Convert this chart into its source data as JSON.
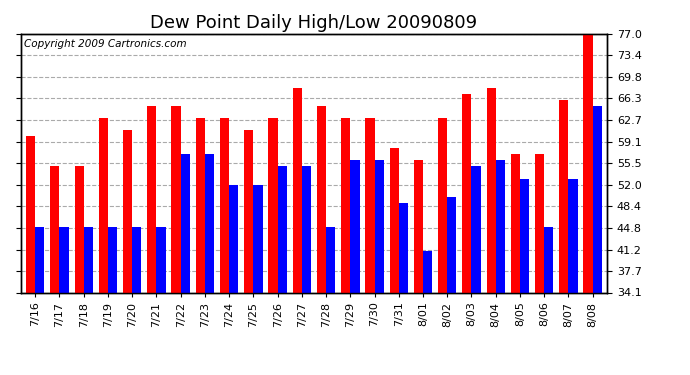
{
  "title": "Dew Point Daily High/Low 20090809",
  "copyright_text": "Copyright 2009 Cartronics.com",
  "dates": [
    "7/16",
    "7/17",
    "7/18",
    "7/19",
    "7/20",
    "7/21",
    "7/22",
    "7/23",
    "7/24",
    "7/25",
    "7/26",
    "7/27",
    "7/28",
    "7/29",
    "7/30",
    "7/31",
    "8/01",
    "8/02",
    "8/03",
    "8/04",
    "8/05",
    "8/06",
    "8/07",
    "8/08"
  ],
  "high_values": [
    60,
    55,
    55,
    63,
    61,
    65,
    65,
    63,
    63,
    61,
    63,
    68,
    65,
    63,
    63,
    58,
    56,
    63,
    67,
    68,
    57,
    57,
    66,
    78
  ],
  "low_values": [
    45,
    45,
    45,
    45,
    45,
    45,
    57,
    57,
    52,
    52,
    55,
    55,
    45,
    56,
    56,
    49,
    41,
    50,
    55,
    56,
    53,
    45,
    53,
    65
  ],
  "high_color": "#ff0000",
  "low_color": "#0000ff",
  "background_color": "#ffffff",
  "grid_color": "#aaaaaa",
  "bar_width": 0.38,
  "yticks": [
    34.1,
    37.7,
    41.2,
    44.8,
    48.4,
    52.0,
    55.5,
    59.1,
    62.7,
    66.3,
    69.8,
    73.4,
    77.0
  ],
  "ymin": 34.1,
  "ymax": 77.0,
  "title_fontsize": 13,
  "tick_fontsize": 8,
  "copyright_fontsize": 7.5
}
